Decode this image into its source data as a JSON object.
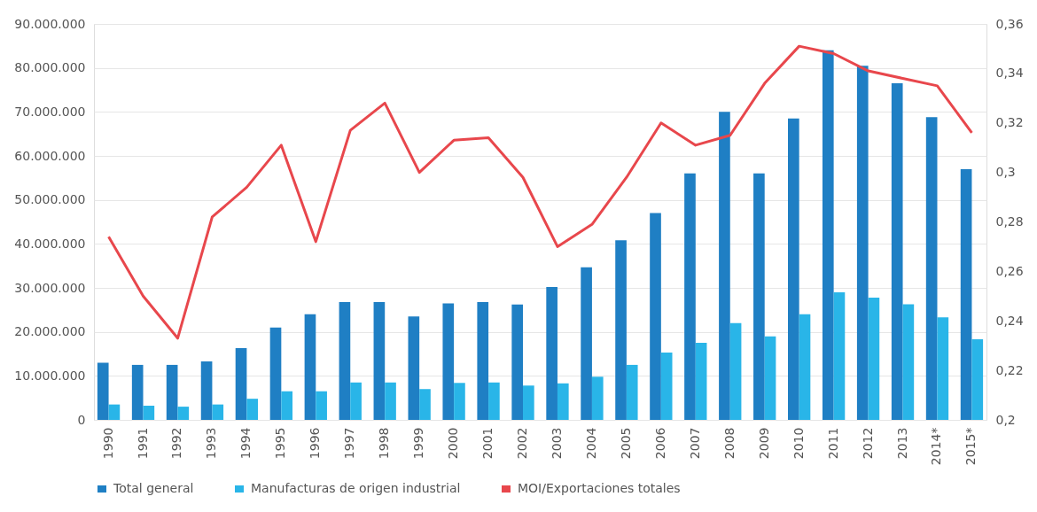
{
  "chart_data": {
    "type": "bar",
    "categories": [
      "1990",
      "1991",
      "1992",
      "1993",
      "1994",
      "1995",
      "1996",
      "1997",
      "1998",
      "1999",
      "2000",
      "2001",
      "2002",
      "2003",
      "2004",
      "2005",
      "2006",
      "2007",
      "2008",
      "2009",
      "2010",
      "2011",
      "2012",
      "2013",
      "2014*",
      "2015*"
    ],
    "series": [
      {
        "name": "Total general",
        "color": "#1f7fc4",
        "values": [
          13000000,
          12500000,
          12500000,
          13300000,
          16300000,
          21000000,
          24000000,
          26800000,
          26800000,
          23500000,
          26500000,
          26800000,
          26200000,
          30200000,
          34700000,
          40800000,
          47000000,
          56000000,
          70000000,
          56000000,
          68500000,
          84000000,
          80500000,
          76500000,
          68800000,
          57000000
        ]
      },
      {
        "name": "Manufacturas de origen industrial",
        "color": "#29b5e8",
        "values": [
          3500000,
          3200000,
          3000000,
          3500000,
          4800000,
          6500000,
          6500000,
          8500000,
          8500000,
          7000000,
          8400000,
          8500000,
          7800000,
          8300000,
          9800000,
          12500000,
          15300000,
          17500000,
          22000000,
          19000000,
          24000000,
          29000000,
          27800000,
          26300000,
          23300000,
          18300000
        ]
      },
      {
        "name": "MOI/Exportaciones totales",
        "type": "line",
        "axis": "y2",
        "color": "#e8474c",
        "values": [
          0.274,
          0.25,
          0.233,
          0.282,
          0.294,
          0.311,
          0.272,
          0.317,
          0.328,
          0.3,
          0.313,
          0.314,
          0.298,
          0.27,
          0.279,
          0.298,
          0.32,
          0.311,
          0.315,
          0.336,
          0.351,
          0.348,
          0.341,
          0.338,
          0.335,
          0.316
        ]
      }
    ],
    "ylim": [
      0,
      90000000
    ],
    "yticks": [
      {
        "value": 0,
        "label": "0"
      },
      {
        "value": 10000000,
        "label": "10.000.000"
      },
      {
        "value": 20000000,
        "label": "20.000.000"
      },
      {
        "value": 30000000,
        "label": "30.000.000"
      },
      {
        "value": 40000000,
        "label": "40.000.000"
      },
      {
        "value": 50000000,
        "label": "50.000.000"
      },
      {
        "value": 60000000,
        "label": "60.000.000"
      },
      {
        "value": 70000000,
        "label": "70.000.000"
      },
      {
        "value": 80000000,
        "label": "80.000.000"
      },
      {
        "value": 90000000,
        "label": "90.000.000"
      }
    ],
    "y2lim": [
      0.2,
      0.36
    ],
    "y2ticks": [
      {
        "value": 0.2,
        "label": "0,2"
      },
      {
        "value": 0.22,
        "label": "0,22"
      },
      {
        "value": 0.24,
        "label": "0,24"
      },
      {
        "value": 0.26,
        "label": "0,26"
      },
      {
        "value": 0.28,
        "label": "0,28"
      },
      {
        "value": 0.3,
        "label": "0,3"
      },
      {
        "value": 0.32,
        "label": "0,32"
      },
      {
        "value": 0.34,
        "label": "0,34"
      },
      {
        "value": 0.36,
        "label": "0,36"
      }
    ],
    "grid": "y",
    "legend": "bottom",
    "line_style": "solid",
    "marker": "none"
  }
}
